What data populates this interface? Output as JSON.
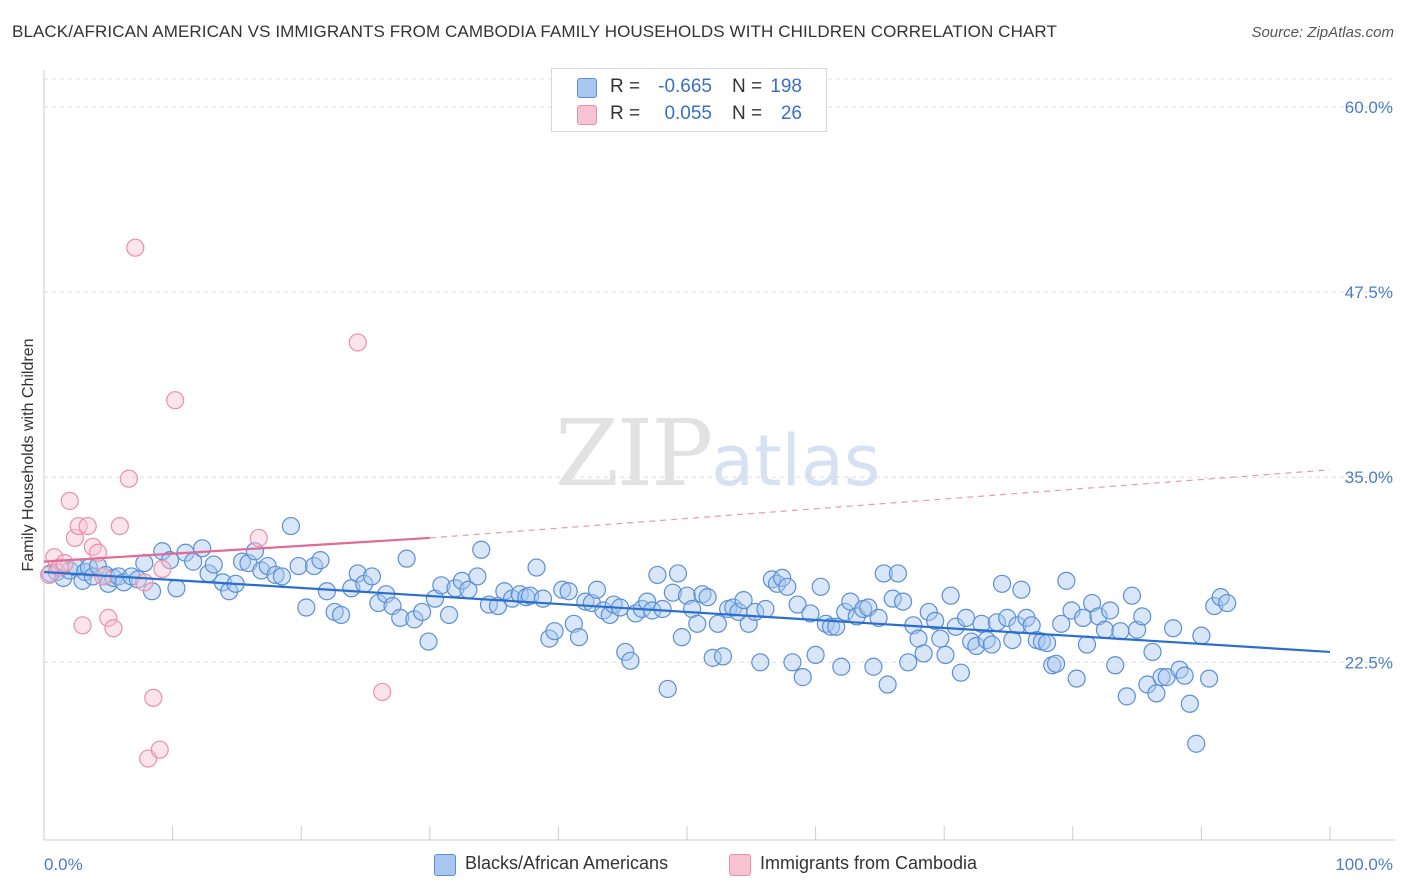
{
  "header": {
    "title": "BLACK/AFRICAN AMERICAN VS IMMIGRANTS FROM CAMBODIA FAMILY HOUSEHOLDS WITH CHILDREN CORRELATION CHART",
    "source": "Source: ZipAtlas.com"
  },
  "watermark": {
    "zip": "ZIP",
    "atlas": "atlas"
  },
  "legend": {
    "rows": [
      {
        "r_label": "R =",
        "r_value": "-0.665",
        "n_label": "N =",
        "n_value": "198"
      },
      {
        "r_label": "R =",
        "r_value": "0.055",
        "n_label": "N =",
        "n_value": "26"
      }
    ]
  },
  "bottom_legend": {
    "series1": "Blacks/African Americans",
    "series2": "Immigrants from Cambodia"
  },
  "colors": {
    "blue_fill": "#a9c7ee",
    "blue_stroke": "#5b8fd6",
    "blue_line": "#2a6fce",
    "pink_fill": "#f7c3d3",
    "pink_stroke": "#ea8fab",
    "pink_line": "#e06b95",
    "axis_text": "#4a7cc9",
    "grid": "#dddddd"
  },
  "chart_data": {
    "type": "scatter",
    "title": "BLACK/AFRICAN AMERICAN VS IMMIGRANTS FROM CAMBODIA FAMILY HOUSEHOLDS WITH CHILDREN CORRELATION CHART",
    "xlabel": "",
    "ylabel": "Family Households with Children",
    "xlim": [
      0,
      100
    ],
    "ylim": [
      10.5,
      62.5
    ],
    "y_ticks": [
      22.5,
      35.0,
      47.5,
      60.0
    ],
    "y_tick_labels": [
      "22.5%",
      "35.0%",
      "47.5%",
      "60.0%"
    ],
    "x_tick_labels": [
      "0.0%",
      "100.0%"
    ],
    "series": [
      {
        "name": "Blacks/African Americans",
        "r": -0.665,
        "n": 198,
        "trend": {
          "x": [
            0,
            100
          ],
          "y": [
            28.6,
            23.2
          ]
        },
        "points": [
          [
            0.5,
            28.5
          ],
          [
            1,
            28.6
          ],
          [
            1.5,
            28.2
          ],
          [
            2,
            28.7
          ],
          [
            2.5,
            28.9
          ],
          [
            3,
            28.0
          ],
          [
            3.2,
            28.6
          ],
          [
            3.5,
            28.9
          ],
          [
            3.8,
            28.3
          ],
          [
            4.2,
            29.0
          ],
          [
            4.8,
            28.4
          ],
          [
            5,
            27.8
          ],
          [
            5.4,
            28.2
          ],
          [
            5.8,
            28.3
          ],
          [
            6.2,
            27.9
          ],
          [
            6.8,
            28.3
          ],
          [
            7.3,
            28.1
          ],
          [
            7.8,
            29.2
          ],
          [
            8.4,
            27.3
          ],
          [
            9.2,
            30.0
          ],
          [
            9.8,
            29.4
          ],
          [
            10.3,
            27.5
          ],
          [
            11,
            29.9
          ],
          [
            11.6,
            29.3
          ],
          [
            12.3,
            30.2
          ],
          [
            12.8,
            28.5
          ],
          [
            13.2,
            29.1
          ],
          [
            13.9,
            27.9
          ],
          [
            14.4,
            27.3
          ],
          [
            14.9,
            27.8
          ],
          [
            15.4,
            29.3
          ],
          [
            15.9,
            29.2
          ],
          [
            16.4,
            30.0
          ],
          [
            16.9,
            28.7
          ],
          [
            17.4,
            29.0
          ],
          [
            18.0,
            28.4
          ],
          [
            18.5,
            28.3
          ],
          [
            19.2,
            31.7
          ],
          [
            19.8,
            29.0
          ],
          [
            20.4,
            26.2
          ],
          [
            21.0,
            29.0
          ],
          [
            21.5,
            29.4
          ],
          [
            22.0,
            27.3
          ],
          [
            22.6,
            25.9
          ],
          [
            23.1,
            25.7
          ],
          [
            23.9,
            27.5
          ],
          [
            24.4,
            28.5
          ],
          [
            24.9,
            27.8
          ],
          [
            25.5,
            28.3
          ],
          [
            26.0,
            26.5
          ],
          [
            26.6,
            27.1
          ],
          [
            27.1,
            26.3
          ],
          [
            27.7,
            25.5
          ],
          [
            28.2,
            29.5
          ],
          [
            28.8,
            25.4
          ],
          [
            29.4,
            25.9
          ],
          [
            29.9,
            23.9
          ],
          [
            30.4,
            26.8
          ],
          [
            30.9,
            27.7
          ],
          [
            31.5,
            25.7
          ],
          [
            32.0,
            27.5
          ],
          [
            32.5,
            28.0
          ],
          [
            33.0,
            27.4
          ],
          [
            33.7,
            28.3
          ],
          [
            34.0,
            30.1
          ],
          [
            34.6,
            26.4
          ],
          [
            35.3,
            26.3
          ],
          [
            35.8,
            27.3
          ],
          [
            36.4,
            26.8
          ],
          [
            37.0,
            27.1
          ],
          [
            37.5,
            26.9
          ],
          [
            37.8,
            27.0
          ],
          [
            38.3,
            28.9
          ],
          [
            38.8,
            26.8
          ],
          [
            39.3,
            24.1
          ],
          [
            39.7,
            24.6
          ],
          [
            40.3,
            27.4
          ],
          [
            40.8,
            27.3
          ],
          [
            41.2,
            25.1
          ],
          [
            41.6,
            24.2
          ],
          [
            42.1,
            26.6
          ],
          [
            42.6,
            26.5
          ],
          [
            43.0,
            27.4
          ],
          [
            43.5,
            26.0
          ],
          [
            44.0,
            25.7
          ],
          [
            44.3,
            26.4
          ],
          [
            44.8,
            26.2
          ],
          [
            45.2,
            23.2
          ],
          [
            45.6,
            22.6
          ],
          [
            46.0,
            25.8
          ],
          [
            46.5,
            26.1
          ],
          [
            46.9,
            26.6
          ],
          [
            47.3,
            26.0
          ],
          [
            47.7,
            28.4
          ],
          [
            48.1,
            26.1
          ],
          [
            48.5,
            20.7
          ],
          [
            48.9,
            27.2
          ],
          [
            49.3,
            28.5
          ],
          [
            49.6,
            24.2
          ],
          [
            50.0,
            27.0
          ],
          [
            50.4,
            26.1
          ],
          [
            50.8,
            25.1
          ],
          [
            51.2,
            27.1
          ],
          [
            51.6,
            26.9
          ],
          [
            52.0,
            22.8
          ],
          [
            52.4,
            25.1
          ],
          [
            52.8,
            22.9
          ],
          [
            53.2,
            26.1
          ],
          [
            53.6,
            26.2
          ],
          [
            54.0,
            25.9
          ],
          [
            54.4,
            26.7
          ],
          [
            54.8,
            25.1
          ],
          [
            55.3,
            25.9
          ],
          [
            55.7,
            22.5
          ],
          [
            56.1,
            26.1
          ],
          [
            56.6,
            28.1
          ],
          [
            57.0,
            27.8
          ],
          [
            57.4,
            28.2
          ],
          [
            57.8,
            27.6
          ],
          [
            58.2,
            22.5
          ],
          [
            58.6,
            26.4
          ],
          [
            59.0,
            21.5
          ],
          [
            59.6,
            25.8
          ],
          [
            60.0,
            23.0
          ],
          [
            60.4,
            27.6
          ],
          [
            60.8,
            25.1
          ],
          [
            61.2,
            24.9
          ],
          [
            61.6,
            24.9
          ],
          [
            62.0,
            22.2
          ],
          [
            62.3,
            25.9
          ],
          [
            62.7,
            26.6
          ],
          [
            63.2,
            25.6
          ],
          [
            63.7,
            26.1
          ],
          [
            64.1,
            26.2
          ],
          [
            64.5,
            22.2
          ],
          [
            64.9,
            25.5
          ],
          [
            65.3,
            28.5
          ],
          [
            65.6,
            21.0
          ],
          [
            66.0,
            26.8
          ],
          [
            66.4,
            28.5
          ],
          [
            66.8,
            26.6
          ],
          [
            67.2,
            22.5
          ],
          [
            67.6,
            25.0
          ],
          [
            68.0,
            24.1
          ],
          [
            68.4,
            23.1
          ],
          [
            68.8,
            25.9
          ],
          [
            69.3,
            25.3
          ],
          [
            69.7,
            24.1
          ],
          [
            70.1,
            23.0
          ],
          [
            70.5,
            27.0
          ],
          [
            70.9,
            24.9
          ],
          [
            71.3,
            21.8
          ],
          [
            71.7,
            25.5
          ],
          [
            72.1,
            23.9
          ],
          [
            72.5,
            23.6
          ],
          [
            72.9,
            25.1
          ],
          [
            73.3,
            24.0
          ],
          [
            73.7,
            23.7
          ],
          [
            74.1,
            25.2
          ],
          [
            74.5,
            27.8
          ],
          [
            74.9,
            25.5
          ],
          [
            75.3,
            24.0
          ],
          [
            75.7,
            25.0
          ],
          [
            76.0,
            27.4
          ],
          [
            76.4,
            25.5
          ],
          [
            76.8,
            25.0
          ],
          [
            77.2,
            24.0
          ],
          [
            77.6,
            23.9
          ],
          [
            78.0,
            23.8
          ],
          [
            78.4,
            22.3
          ],
          [
            78.7,
            22.4
          ],
          [
            79.1,
            25.1
          ],
          [
            79.5,
            28.0
          ],
          [
            79.9,
            26.0
          ],
          [
            80.3,
            21.4
          ],
          [
            80.8,
            25.5
          ],
          [
            81.1,
            23.7
          ],
          [
            81.5,
            26.5
          ],
          [
            82.0,
            25.6
          ],
          [
            82.5,
            24.7
          ],
          [
            82.9,
            26.0
          ],
          [
            83.3,
            22.3
          ],
          [
            83.7,
            24.6
          ],
          [
            84.2,
            20.2
          ],
          [
            84.6,
            27.0
          ],
          [
            85.0,
            24.7
          ],
          [
            85.4,
            25.6
          ],
          [
            85.8,
            21.0
          ],
          [
            86.2,
            23.2
          ],
          [
            86.5,
            20.4
          ],
          [
            86.9,
            21.5
          ],
          [
            87.3,
            21.5
          ],
          [
            87.8,
            24.8
          ],
          [
            88.3,
            22.0
          ],
          [
            88.7,
            21.6
          ],
          [
            89.1,
            19.7
          ],
          [
            89.6,
            17.0
          ],
          [
            90.0,
            24.3
          ],
          [
            90.6,
            21.4
          ],
          [
            91.0,
            26.3
          ],
          [
            91.5,
            26.9
          ],
          [
            92.0,
            26.5
          ]
        ]
      },
      {
        "name": "Immigrants from Cambodia",
        "r": 0.055,
        "n": 26,
        "trend": {
          "x": [
            0,
            30
          ],
          "y": [
            29.3,
            30.9
          ],
          "dashed_to": {
            "x": 100,
            "y": 35.5
          }
        },
        "points": [
          [
            0.4,
            28.4
          ],
          [
            0.8,
            29.6
          ],
          [
            1.2,
            28.9
          ],
          [
            1.6,
            29.2
          ],
          [
            2,
            33.4
          ],
          [
            2.4,
            30.9
          ],
          [
            2.7,
            31.7
          ],
          [
            3,
            25.0
          ],
          [
            3.4,
            31.7
          ],
          [
            3.8,
            30.3
          ],
          [
            4.2,
            29.9
          ],
          [
            4.6,
            28.3
          ],
          [
            5,
            25.5
          ],
          [
            5.4,
            24.8
          ],
          [
            5.9,
            31.7
          ],
          [
            6.6,
            34.9
          ],
          [
            7.1,
            50.5
          ],
          [
            7.8,
            27.9
          ],
          [
            8.1,
            16.0
          ],
          [
            8.5,
            20.1
          ],
          [
            9.2,
            28.8
          ],
          [
            9.0,
            16.6
          ],
          [
            10.2,
            40.2
          ],
          [
            16.7,
            30.9
          ],
          [
            24.4,
            44.1
          ],
          [
            26.3,
            20.5
          ]
        ]
      }
    ]
  }
}
